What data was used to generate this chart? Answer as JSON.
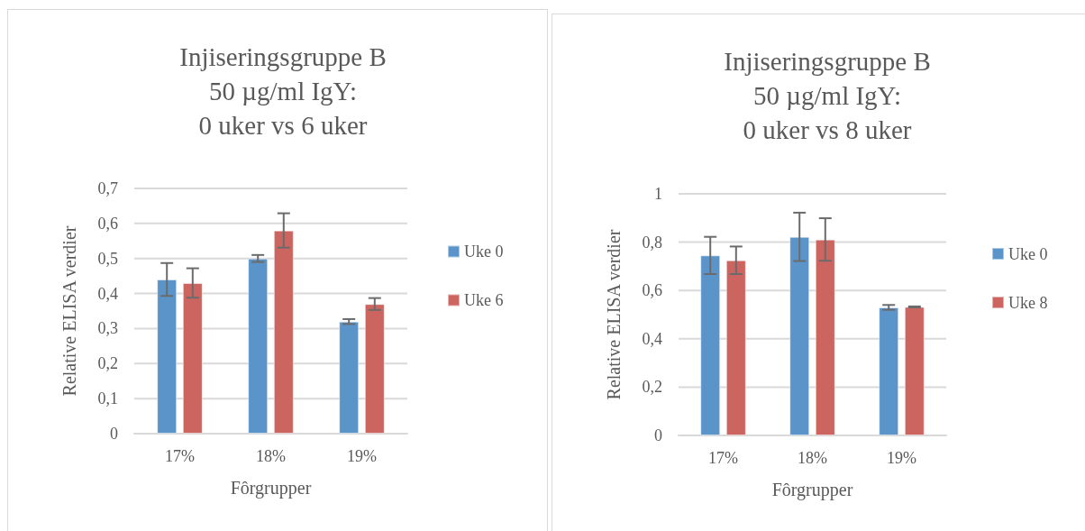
{
  "chart_data": [
    {
      "type": "bar",
      "title": "Injiseringsgruppe B\n50 µg/ml IgY:\n0 uker vs 6 uker",
      "xlabel": "Fôrgrupper",
      "ylabel": "Relative ELISA verdier",
      "categories": [
        "17%",
        "18%",
        "19%"
      ],
      "series": [
        {
          "name": "Uke 0",
          "color": "#5b94c9",
          "values": [
            0.44,
            0.5,
            0.32
          ],
          "errors": [
            0.047,
            0.01,
            0.007
          ]
        },
        {
          "name": "Uke 6",
          "color": "#cc6560",
          "values": [
            0.43,
            0.58,
            0.37
          ],
          "errors": [
            0.042,
            0.049,
            0.017
          ]
        }
      ],
      "ylim": [
        0,
        0.7
      ],
      "yticks": [
        {
          "value": 0,
          "label": "0"
        },
        {
          "value": 0.1,
          "label": "0,1"
        },
        {
          "value": 0.2,
          "label": "0,2"
        },
        {
          "value": 0.3,
          "label": "0,3"
        },
        {
          "value": 0.4,
          "label": "0,4"
        },
        {
          "value": 0.5,
          "label": "0,5"
        },
        {
          "value": 0.6,
          "label": "0,6"
        },
        {
          "value": 0.7,
          "label": "0,7"
        }
      ],
      "grid": "y",
      "legend": "right"
    },
    {
      "type": "bar",
      "title": "Injiseringsgruppe B\n50 µg/ml IgY:\n0 uker vs 8 uker",
      "xlabel": "Fôrgrupper",
      "ylabel": "Relative ELISA verdier",
      "categories": [
        "17%",
        "18%",
        "19%"
      ],
      "series": [
        {
          "name": "Uke 0",
          "color": "#5b94c9",
          "values": [
            0.745,
            0.822,
            0.53
          ],
          "errors": [
            0.077,
            0.1,
            0.01
          ]
        },
        {
          "name": "Uke 8",
          "color": "#cc6560",
          "values": [
            0.725,
            0.811,
            0.532
          ],
          "errors": [
            0.057,
            0.088,
            0.002
          ]
        }
      ],
      "ylim": [
        0,
        1
      ],
      "yticks": [
        {
          "value": 0,
          "label": "0"
        },
        {
          "value": 0.2,
          "label": "0,2"
        },
        {
          "value": 0.4,
          "label": "0,4"
        },
        {
          "value": 0.6,
          "label": "0,6"
        },
        {
          "value": 0.8,
          "label": "0,8"
        },
        {
          "value": 1,
          "label": "1"
        }
      ],
      "grid": "y",
      "legend": "right"
    }
  ]
}
